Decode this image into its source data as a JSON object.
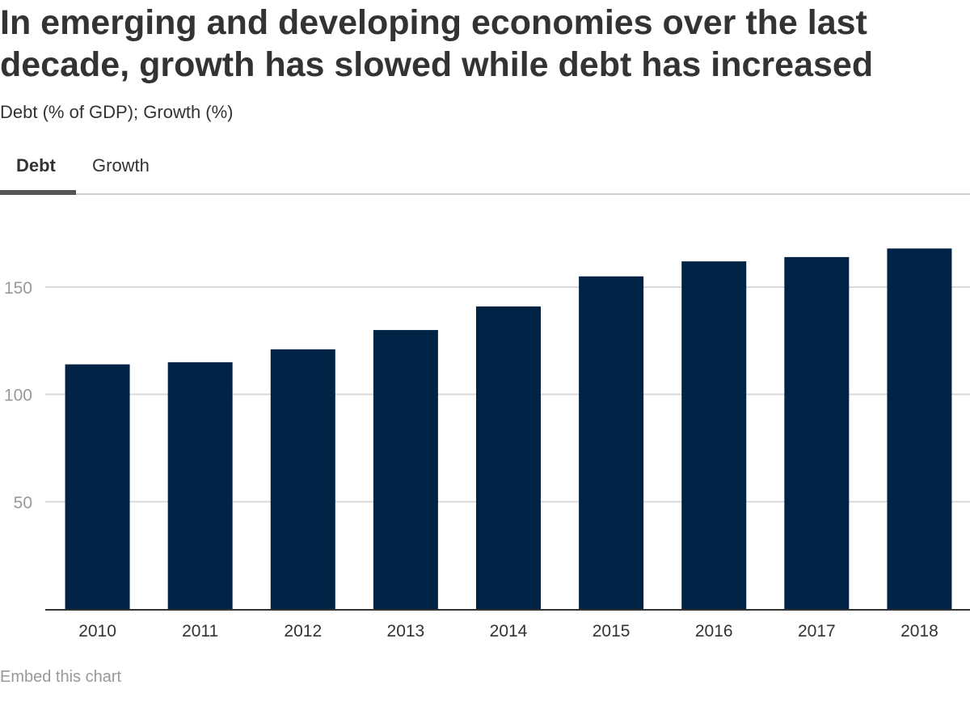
{
  "header": {
    "title": "In emerging and developing economies over the last decade, growth has slowed while debt has increased",
    "subtitle": "Debt (% of GDP); Growth (%)"
  },
  "tabs": [
    {
      "label": "Debt",
      "active": true
    },
    {
      "label": "Growth",
      "active": false
    }
  ],
  "footer": {
    "embed_label": "Embed this chart"
  },
  "colors": {
    "bar": "#002245",
    "grid": "#d9d9d9",
    "axis": "#333333",
    "tick_text": "#999999"
  },
  "chart_data": {
    "type": "bar",
    "title": "In emerging and developing economies over the last decade, growth has slowed while debt has increased",
    "subtitle": "Debt (% of GDP); Growth (%)",
    "active_series": "Debt",
    "categories": [
      "2010",
      "2011",
      "2012",
      "2013",
      "2014",
      "2015",
      "2016",
      "2017",
      "2018"
    ],
    "series": [
      {
        "name": "Debt",
        "values": [
          114,
          115,
          121,
          130,
          141,
          155,
          162,
          164,
          168
        ]
      }
    ],
    "xlabel": "",
    "ylabel": "Debt (% of GDP)",
    "ylim": [
      0,
      180
    ],
    "yticks": [
      50,
      100,
      150
    ],
    "grid": true,
    "legend": "none"
  }
}
